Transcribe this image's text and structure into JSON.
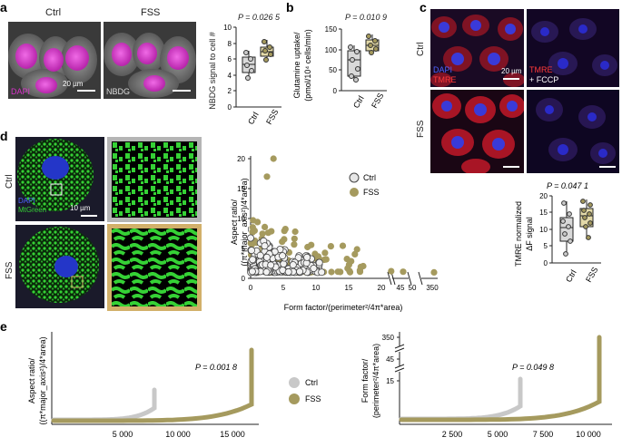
{
  "panels": {
    "a": {
      "label": "a",
      "image_labels": {
        "ctrl": "Ctrl",
        "fss": "FSS",
        "dapi": "DAPI",
        "nbdg": "NBDG",
        "scale": "20 µm"
      },
      "plot": {
        "pvalue": "P = 0.026 5",
        "ylabel": "NBDG signal to cell #",
        "xticks": [
          "Ctrl",
          "FSS"
        ],
        "yticks": [
          "0",
          "2",
          "4",
          "6",
          "8",
          "10"
        ]
      }
    },
    "b": {
      "label": "b",
      "plot": {
        "pvalue": "P = 0.010 9",
        "ylabel_line1": "Glutamine uptake/",
        "ylabel_line2": "(pmol/10⁴ cells/min)",
        "xticks": [
          "Ctrl",
          "FSS"
        ],
        "yticks": [
          "0",
          "50",
          "100",
          "150"
        ]
      }
    },
    "c": {
      "label": "c",
      "row_labels": {
        "ctrl": "Ctrl",
        "fss": "FSS"
      },
      "image_labels": {
        "dapi": "DAPI",
        "tmre": "TMRE",
        "tmre_fccp_1": "TMRE",
        "tmre_fccp_2": "+ FCCP",
        "scale": "20 µm"
      },
      "plot": {
        "pvalue": "P = 0.047 1",
        "ylabel_line1": "TMRE normalized",
        "ylabel_line2": "ΔF signal",
        "xticks": [
          "Ctrl",
          "FSS"
        ],
        "yticks": [
          "0",
          "5",
          "10",
          "15",
          "20"
        ]
      }
    },
    "d": {
      "label": "d",
      "row_labels": {
        "ctrl": "Ctrl",
        "fss": "FSS"
      },
      "image_labels": {
        "dapi": "DAPI",
        "mtgreen": "MtGreen",
        "scale": "10 µm"
      },
      "plot": {
        "ylabel_line1": "Aspect ratio/",
        "ylabel_line2": "((π*major_axis²)/4*area)",
        "xlabel": "Form factor/(perimeter²/4π*area)",
        "xticks": [
          "0",
          "5",
          "10",
          "15",
          "20",
          "45",
          "50",
          "350"
        ],
        "yticks": [
          "0",
          "5",
          "10",
          "15",
          "20"
        ],
        "legend": [
          "Ctrl",
          "FSS"
        ]
      }
    },
    "e": {
      "label": "e",
      "left": {
        "ylabel_line1": "Aspect ratio/",
        "ylabel_line2": "((π*major_axis²)/4*area)",
        "pvalue": "P = 0.001 8",
        "xticks": [
          "5 000",
          "10 000",
          "15 000"
        ]
      },
      "legend": [
        "Ctrl",
        "FSS"
      ],
      "right": {
        "ylabel_line1": "Form factor/",
        "ylabel_line2": "(perimeter²/4π*area)",
        "pvalue": "P = 0.049 8",
        "yticks": [
          "350",
          "45",
          "15"
        ],
        "xticks": [
          "2 500",
          "5 000",
          "7 500",
          "10 000"
        ]
      }
    }
  },
  "colors": {
    "ctrl": "#c8c8c8",
    "fss": "#a59a5e",
    "fss_dark": "#8f8550",
    "box_ctrl": "#d9d9d9",
    "box_fss": "#e3d9a8",
    "dapi_blue": "#2436c8",
    "magenta": "#d633c8",
    "tmre_red": "#c2182b",
    "mt_green": "#35d135",
    "frame_gold": "#d2b06a"
  }
}
